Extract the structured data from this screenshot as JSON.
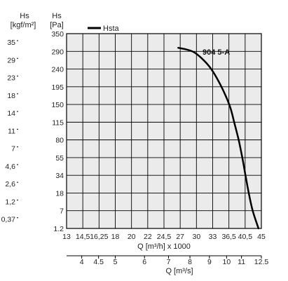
{
  "chart_data": {
    "type": "line",
    "left_axis": {
      "header_top": "Hs",
      "header_unit": "[kgf/m²]",
      "ticks": [
        "35",
        "29",
        "23",
        "18",
        "14",
        "11",
        "7",
        "4,6",
        "2,6",
        "1,2",
        "0,37"
      ]
    },
    "y_axis": {
      "header_top": "Hs",
      "header_unit": "[Pa]",
      "ticks": [
        350,
        290,
        240,
        195,
        150,
        115,
        80,
        55,
        34,
        18,
        7,
        1.2
      ]
    },
    "x_axis": {
      "label": "Q [m³/h] x 1000",
      "ticks": [
        "13",
        "14,5",
        "16,25",
        "18",
        "20",
        "22",
        "24,5",
        "27",
        "30",
        "33",
        "36,5",
        "40,5",
        "45"
      ]
    },
    "x_axis_secondary": {
      "label": "Q [m³/s]",
      "ticks": [
        "4",
        "4.5",
        "5",
        "6",
        "7",
        "8",
        "9",
        "10",
        "11",
        "12.5"
      ]
    },
    "legend": [
      {
        "label": "Hsta",
        "color": "#000000"
      }
    ],
    "series": [
      {
        "name": "904 5-A",
        "color": "#000000",
        "points": [
          {
            "q": 26.7,
            "hs": 302
          },
          {
            "q": 28.0,
            "hs": 297
          },
          {
            "q": 29.5,
            "hs": 288
          },
          {
            "q": 31.0,
            "hs": 270
          },
          {
            "q": 32.5,
            "hs": 245
          },
          {
            "q": 34.0,
            "hs": 215
          },
          {
            "q": 35.5,
            "hs": 180
          },
          {
            "q": 36.8,
            "hs": 145
          },
          {
            "q": 37.8,
            "hs": 115
          },
          {
            "q": 38.9,
            "hs": 80
          },
          {
            "q": 39.8,
            "hs": 55
          },
          {
            "q": 40.6,
            "hs": 34
          },
          {
            "q": 41.5,
            "hs": 18
          },
          {
            "q": 42.6,
            "hs": 7
          },
          {
            "q": 44.2,
            "hs": 1.2
          }
        ]
      }
    ]
  }
}
